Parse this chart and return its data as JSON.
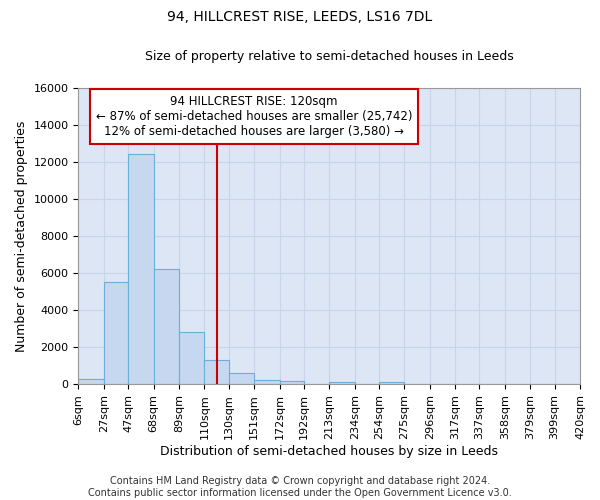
{
  "title": "94, HILLCREST RISE, LEEDS, LS16 7DL",
  "subtitle": "Size of property relative to semi-detached houses in Leeds",
  "xlabel": "Distribution of semi-detached houses by size in Leeds",
  "ylabel": "Number of semi-detached properties",
  "annotation_line1": "94 HILLCREST RISE: 120sqm",
  "annotation_line2": "← 87% of semi-detached houses are smaller (25,742)",
  "annotation_line3": "12% of semi-detached houses are larger (3,580) →",
  "footer1": "Contains HM Land Registry data © Crown copyright and database right 2024.",
  "footer2": "Contains public sector information licensed under the Open Government Licence v3.0.",
  "bin_edges": [
    6,
    27,
    47,
    68,
    89,
    110,
    130,
    151,
    172,
    192,
    213,
    234,
    254,
    275,
    296,
    317,
    337,
    358,
    379,
    399,
    420
  ],
  "bin_labels": [
    "6sqm",
    "27sqm",
    "47sqm",
    "68sqm",
    "89sqm",
    "110sqm",
    "130sqm",
    "151sqm",
    "172sqm",
    "192sqm",
    "213sqm",
    "234sqm",
    "254sqm",
    "275sqm",
    "296sqm",
    "317sqm",
    "337sqm",
    "358sqm",
    "379sqm",
    "399sqm",
    "420sqm"
  ],
  "counts": [
    300,
    5500,
    12450,
    6200,
    2800,
    1300,
    600,
    250,
    150,
    0,
    100,
    0,
    100,
    0,
    0,
    0,
    0,
    0,
    0,
    0
  ],
  "bar_color": "#c5d8f0",
  "bar_edge_color": "#6baed6",
  "vline_color": "#cc0000",
  "vline_x": 120,
  "ylim": [
    0,
    16000
  ],
  "yticks": [
    0,
    2000,
    4000,
    6000,
    8000,
    10000,
    12000,
    14000,
    16000
  ],
  "grid_color": "#c8d4e8",
  "background_color": "#dce6f4",
  "box_color": "#ffffff",
  "annotation_box_edge": "#cc0000",
  "title_fontsize": 10,
  "subtitle_fontsize": 9,
  "label_fontsize": 9,
  "tick_fontsize": 8,
  "footer_fontsize": 7,
  "ann_fontsize": 8.5
}
